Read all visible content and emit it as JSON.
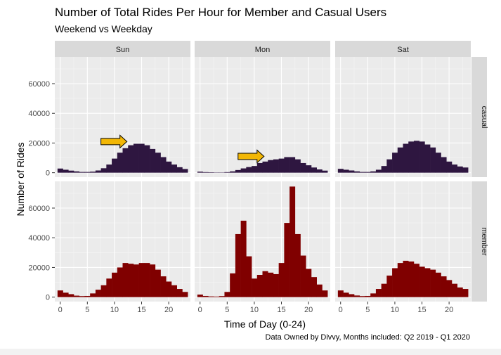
{
  "chart_data": {
    "type": "bar",
    "title": "Number of Total Rides Per Hour for Member and Casual Users",
    "subtitle": "Weekend vs Weekday",
    "xlabel": "Time of Day (0-24)",
    "ylabel": "Number of Rides",
    "caption": "Data Owned by Divvy, Months included: Q2 2019 - Q1 2020",
    "facet_columns": [
      "Sun",
      "Mon",
      "Sat"
    ],
    "facet_rows": [
      "casual",
      "member"
    ],
    "x": [
      0,
      1,
      2,
      3,
      4,
      5,
      6,
      7,
      8,
      9,
      10,
      11,
      12,
      13,
      14,
      15,
      16,
      17,
      18,
      19,
      20,
      21,
      22,
      23
    ],
    "xlim": [
      -1,
      24
    ],
    "ylim": [
      -3000,
      78000
    ],
    "x_ticks": [
      0,
      5,
      10,
      15,
      20
    ],
    "y_ticks": [
      0,
      20000,
      40000,
      60000
    ],
    "grid": true,
    "legend": "none",
    "colors": {
      "casual": "#2e1640",
      "member": "#800000",
      "arrow": "#f2b705",
      "panel_bg": "#ebebeb",
      "strip_bg": "#d9d9d9"
    },
    "panels": [
      {
        "day": "Sun",
        "user_type": "casual",
        "values": [
          2800,
          2000,
          1400,
          900,
          500,
          500,
          700,
          1500,
          3000,
          5500,
          9500,
          13500,
          16500,
          18500,
          19500,
          19500,
          18500,
          16000,
          13500,
          10500,
          7500,
          5500,
          3700,
          2500
        ]
      },
      {
        "day": "Mon",
        "user_type": "casual",
        "values": [
          700,
          400,
          300,
          200,
          200,
          400,
          900,
          1800,
          2900,
          3800,
          4500,
          6500,
          7500,
          8500,
          9000,
          9500,
          10500,
          10500,
          9000,
          6500,
          5000,
          3500,
          2200,
          1400
        ]
      },
      {
        "day": "Sat",
        "user_type": "casual",
        "values": [
          2600,
          2000,
          1500,
          900,
          500,
          500,
          900,
          2000,
          4500,
          9000,
          13500,
          17000,
          19500,
          21000,
          21500,
          21000,
          19000,
          17000,
          13500,
          10500,
          7500,
          5500,
          4200,
          3500
        ]
      },
      {
        "day": "Sun",
        "user_type": "member",
        "values": [
          4500,
          3000,
          2000,
          1000,
          700,
          800,
          2500,
          5000,
          8000,
          12500,
          16500,
          20000,
          23000,
          22500,
          22000,
          23000,
          23000,
          22000,
          18500,
          14000,
          10500,
          8000,
          5500,
          3500
        ]
      },
      {
        "day": "Mon",
        "user_type": "member",
        "values": [
          1700,
          800,
          500,
          400,
          700,
          3500,
          16000,
          42500,
          51500,
          27500,
          12500,
          15000,
          17500,
          16500,
          15500,
          23000,
          50000,
          74500,
          42500,
          28000,
          19000,
          13500,
          8500,
          4500
        ]
      },
      {
        "day": "Sat",
        "user_type": "member",
        "values": [
          4500,
          3000,
          2000,
          1100,
          700,
          800,
          2500,
          5500,
          9000,
          14500,
          19500,
          23000,
          24500,
          24000,
          22500,
          20500,
          19500,
          18500,
          16500,
          14000,
          11500,
          9000,
          6500,
          5500
        ]
      }
    ],
    "annotations": [
      {
        "type": "arrow",
        "panel": "Sun-casual",
        "x_from": 7.5,
        "x_to": 12.3,
        "y": 21000
      },
      {
        "type": "arrow",
        "panel": "Mon-casual",
        "x_from": 7,
        "x_to": 11.8,
        "y": 11000
      }
    ]
  }
}
